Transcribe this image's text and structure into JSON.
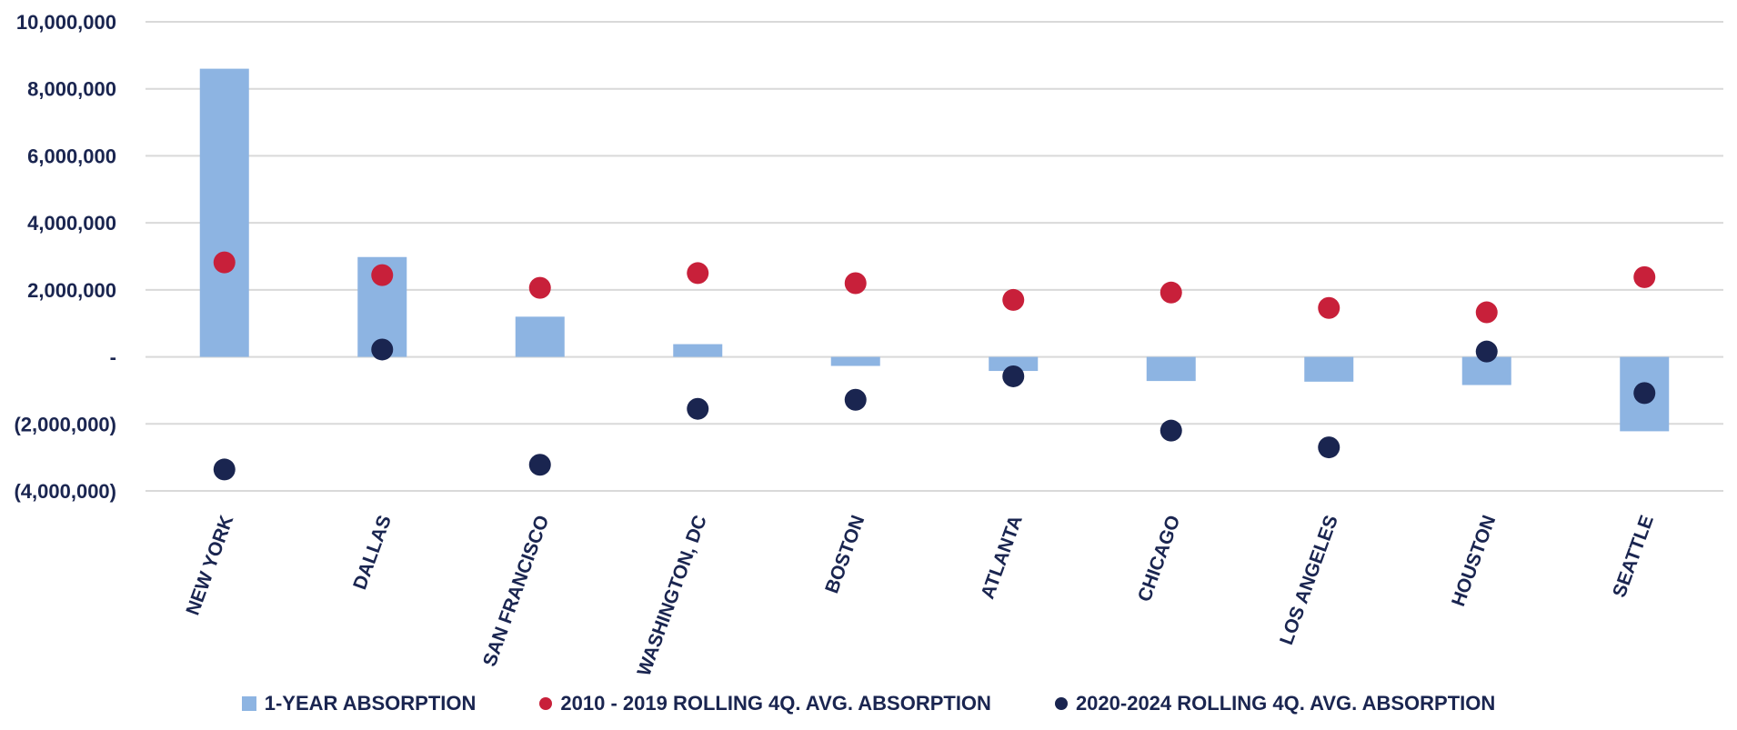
{
  "chart_data": {
    "type": "bar",
    "title": "",
    "xlabel": "",
    "ylabel": "",
    "ylim": [
      -4000000,
      10000000
    ],
    "yticks": [
      10000000,
      8000000,
      6000000,
      4000000,
      2000000,
      0,
      -2000000,
      -4000000
    ],
    "ytick_labels": [
      "10,000,000",
      "8,000,000",
      "6,000,000",
      "4,000,000",
      "2,000,000",
      "-",
      "(2,000,000)",
      "(4,000,000)"
    ],
    "grid": true,
    "legend_position": "bottom",
    "categories": [
      "NEW YORK",
      "DALLAS",
      "SAN FRANCISCO",
      "WASHINGTON, DC",
      "BOSTON",
      "ATLANTA",
      "CHICAGO",
      "LOS ANGELES",
      "HOUSTON",
      "SEATTLE"
    ],
    "series": [
      {
        "name": "1-YEAR ABSORPTION",
        "kind": "bar",
        "color": "#8db4e2",
        "values": [
          8600000,
          2980000,
          1200000,
          380000,
          -270000,
          -420000,
          -720000,
          -740000,
          -840000,
          -2220000
        ]
      },
      {
        "name": "2010 - 2019 ROLLING 4Q. AVG. ABSORPTION",
        "kind": "scatter",
        "color": "#c8203a",
        "values": [
          2820000,
          2440000,
          2060000,
          2500000,
          2200000,
          1700000,
          1920000,
          1460000,
          1330000,
          2380000
        ]
      },
      {
        "name": "2020-2024 ROLLING 4Q. AVG. ABSORPTION",
        "kind": "scatter",
        "color": "#1a2550",
        "values": [
          -3360000,
          220000,
          -3220000,
          -1550000,
          -1280000,
          -580000,
          -2200000,
          -2700000,
          160000,
          -1080000
        ]
      }
    ]
  }
}
